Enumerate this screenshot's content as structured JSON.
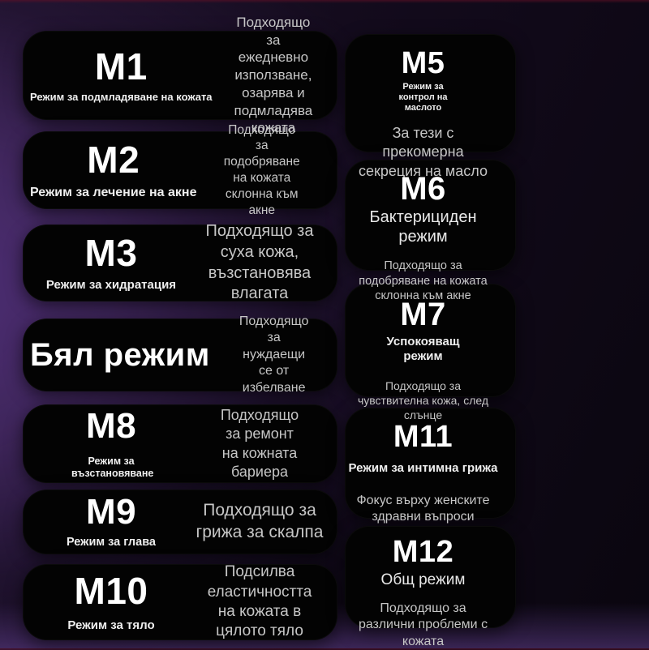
{
  "left": [
    {
      "title": "M1",
      "subtitle": "Режим за подмладяване на кожата",
      "description": "Подходящо за ежедневно използване, озарява и подмладява кожата"
    },
    {
      "title": "M2",
      "subtitle": "Режим за лечение на акне",
      "description": "Подходящо за подобряване на кожата склонна към акне"
    },
    {
      "title": "M3",
      "subtitle": "Режим за хидратация",
      "description": "Подходящо за суха кожа, възстановява влагата"
    },
    {
      "title": "Бял режим",
      "subtitle": "",
      "description": "Подходящо за нуждаещи се от избелване"
    },
    {
      "title": "M8",
      "subtitle": "Режим за възстановяване",
      "description": "Подходящо за ремонт на кожната бариера"
    },
    {
      "title": "M9",
      "subtitle": "Режим за глава",
      "description": "Подходящо за грижа за скалпа"
    },
    {
      "title": "M10",
      "subtitle": "Режим за тяло",
      "description": "Подсилва еластичността на кожата в цялото тяло"
    }
  ],
  "right": [
    {
      "title": "M5",
      "subtitle": "Режим за контрол на маслото",
      "description": "За тези с прекомерна секреция на масло"
    },
    {
      "title": "M6",
      "subtitle": "Бактерициден режим",
      "description": "Подходящо за подобряване на кожата склонна към акне"
    },
    {
      "title": "M7",
      "subtitle": "Успокояващ режим",
      "description": "Подходящо за чувствителна кожа, след слънце"
    },
    {
      "title": "M11",
      "subtitle": "Режим за интимна грижа",
      "description": "Фокус върху женските здравни въпроси"
    },
    {
      "title": "M12",
      "subtitle": "Общ режим",
      "description": "Подходящо за различни проблеми с кожата"
    }
  ],
  "theme": {
    "card_background": "#030303",
    "title_color": "#ffffff",
    "subtitle_color": "#efefef",
    "description_color": "#c6c6c6",
    "background_purple": "#4a2c66",
    "background_dark": "#0a060f",
    "top_edge_maroon": "#681026"
  }
}
